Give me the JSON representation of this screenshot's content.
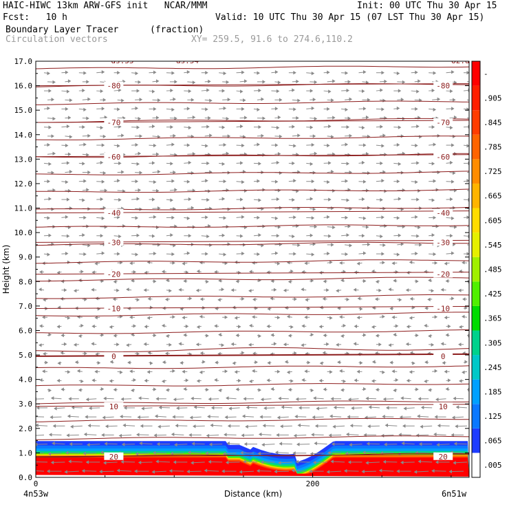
{
  "header": {
    "title": "HAIC-HIWC 13km ARW-GFS init   NCAR/MMM",
    "init": "Init: 00 UTC Thu 30 Apr 15",
    "fcst": "Fcst:   10 h",
    "valid": "Valid: 10 UTC Thu 30 Apr 15 (07 LST Thu 30 Apr 15)",
    "field": "Boundary Layer Tracer",
    "units": "(fraction)",
    "vectors": "Circulation vectors",
    "xy": "XY= 259.5, 91.6 to 274.6,110.2"
  },
  "chart_data": {
    "type": "heatmap",
    "title": "Boundary Layer Tracer",
    "ylabel": "Height (km)",
    "xlabel": "Distance (km)",
    "ylim": [
      0,
      17
    ],
    "xlim": [
      0,
      313
    ],
    "yticks": [
      "0.0",
      "1.0",
      "2.0",
      "3.0",
      "4.0",
      "5.0",
      "6.0",
      "7.0",
      "8.0",
      "9.0",
      "10.0",
      "11.0",
      "12.0",
      "13.0",
      "14.0",
      "15.0",
      "16.0",
      "17.0"
    ],
    "xticks": [
      "0",
      "200"
    ],
    "x_endpoints": [
      "4n53w",
      "6n51w"
    ],
    "colorbar_labels": [
      ".005",
      ".065",
      ".125",
      ".185",
      ".245",
      ".305",
      ".365",
      ".425",
      ".485",
      ".545",
      ".605",
      ".665",
      ".725",
      ".785",
      ".845",
      ".905",
      "-"
    ],
    "colorbar_colors": [
      "#ffffff",
      "#1e3cff",
      "#0a78ff",
      "#00a0ff",
      "#00c8c8",
      "#00d28c",
      "#00dc00",
      "#50f000",
      "#a0f000",
      "#e6f000",
      "#ffdc00",
      "#ffb400",
      "#ff8c00",
      "#ff6400",
      "#ff3c00",
      "#ff1e00",
      "#ff0000"
    ],
    "isotherms": [
      {
        "label": "-80",
        "height": 16.0
      },
      {
        "label": "-70",
        "height": 14.5
      },
      {
        "label": "-60",
        "height": 13.1
      },
      {
        "label": "-40",
        "height": 10.8
      },
      {
        "label": "-30",
        "height": 9.6
      },
      {
        "label": "-20",
        "height": 8.3
      },
      {
        "label": "-10",
        "height": 6.9
      },
      {
        "label": "0",
        "height": 4.95
      },
      {
        "label": "10",
        "height": 2.9
      },
      {
        "label": "20",
        "height": 0.85
      }
    ],
    "top_labels": [
      "ds.55",
      "ds.54",
      "-82.ds"
    ],
    "contour_color": "#8b1a1a",
    "vector_color": "#8a8a8a"
  }
}
